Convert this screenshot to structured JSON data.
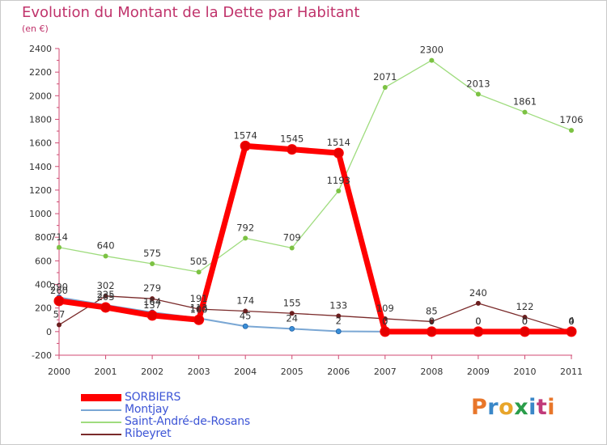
{
  "title": "Evolution du Montant de la Dette par Habitant",
  "subtitle": "(en €)",
  "logo": {
    "letters": [
      "P",
      "r",
      "o",
      "x",
      "i",
      "t",
      "i"
    ],
    "colors": [
      "#e8762a",
      "#3a87c8",
      "#e8a52a",
      "#2a9d4a",
      "#3a87c8",
      "#c03a7a",
      "#e8762a"
    ]
  },
  "chart_data": {
    "type": "line",
    "x": [
      "2000",
      "2001",
      "2002",
      "2003",
      "2004",
      "2005",
      "2006",
      "2007",
      "2008",
      "2009",
      "2010",
      "2011"
    ],
    "ylim": [
      -200,
      2400
    ],
    "yticks": [
      "-200",
      "0",
      "200",
      "400",
      "600",
      "800",
      "1000",
      "1200",
      "1400",
      "1600",
      "1800",
      "2000",
      "2200",
      "2400"
    ],
    "grid": false,
    "legend_position": "bottom-left",
    "series": [
      {
        "name": "Ribeyret",
        "color": "#7a2a2a",
        "marker": "#6b1e1e",
        "values": [
          57,
          302,
          279,
          191,
          174,
          155,
          133,
          109,
          85,
          240,
          122,
          0
        ],
        "labels": [
          "57",
          "302",
          "279",
          "191",
          "174",
          "155",
          "133",
          "109",
          "85",
          "240",
          "122",
          "0"
        ]
      },
      {
        "name": "Saint-André-de-Rosans",
        "color": "#9fdc7e",
        "marker": "#7cc243",
        "values": [
          714,
          640,
          575,
          505,
          792,
          709,
          1193,
          2071,
          2300,
          2013,
          1861,
          1706
        ],
        "labels": [
          "714",
          "640",
          "575",
          "505",
          "792",
          "709",
          "1193",
          "2071",
          "2300",
          "2013",
          "1861",
          "1706"
        ]
      },
      {
        "name": "Montjay",
        "color": "#7aa7d4",
        "marker": "#3a8fd8",
        "values": [
          290,
          225,
          164,
          113,
          45,
          24,
          2,
          0,
          0,
          0,
          0,
          4
        ],
        "labels": [
          "290",
          "225",
          "164",
          "113",
          "45",
          "24",
          "2",
          "0",
          "0",
          "0",
          "0",
          "4"
        ]
      },
      {
        "name": "SORBIERS",
        "color": "#ff0000",
        "marker": "#e60000",
        "values": [
          260,
          205,
          137,
          100,
          1574,
          1545,
          1514,
          0,
          0,
          0,
          0,
          0
        ],
        "labels": [
          "260",
          "205",
          "137",
          "100",
          "1574",
          "1545",
          "1514",
          "0",
          "0",
          "0",
          "0",
          "0"
        ]
      }
    ],
    "legend_order": [
      "SORBIERS",
      "Montjay",
      "Saint-André-de-Rosans",
      "Ribeyret"
    ]
  }
}
